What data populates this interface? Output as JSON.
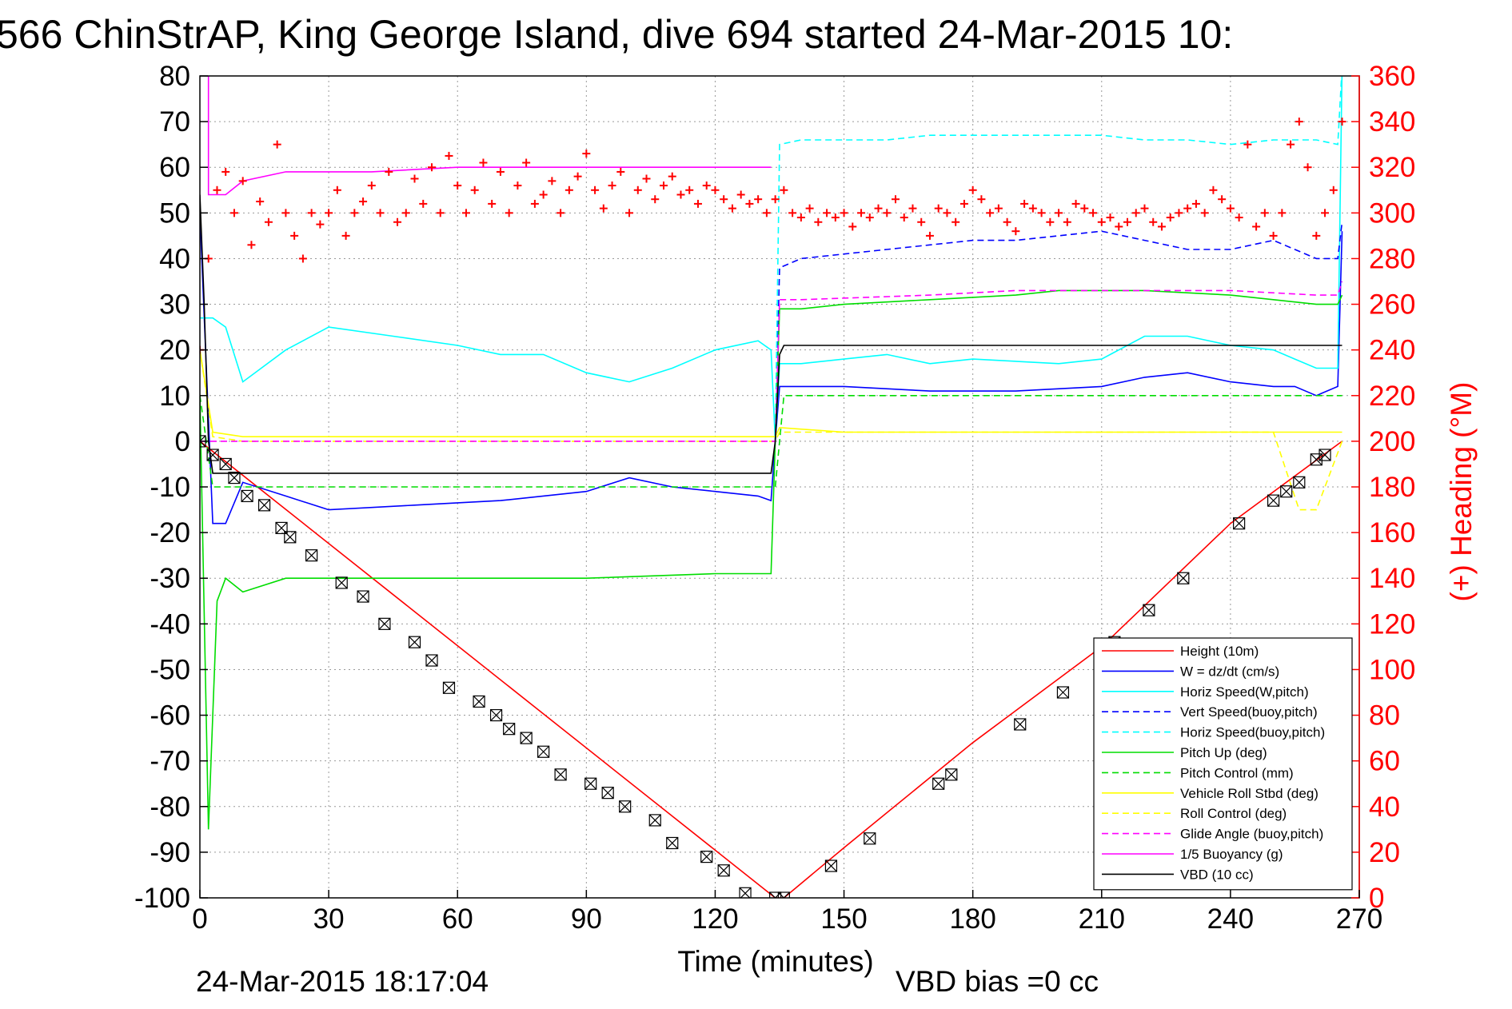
{
  "chart_data": {
    "type": "line",
    "title": "566 ChinStrAP, King George Island, dive 694 started 24-Mar-2015 10:",
    "xlabel": "Time (minutes)",
    "ylabel": "",
    "y2label": "(+) Heading (°M)",
    "xlim": [
      0,
      270
    ],
    "ylim": [
      -100,
      80
    ],
    "y2lim": [
      0,
      360
    ],
    "xticks": [
      0,
      30,
      60,
      90,
      120,
      150,
      180,
      210,
      240,
      270
    ],
    "yticks": [
      -100,
      -90,
      -80,
      -70,
      -60,
      -50,
      -40,
      -30,
      -20,
      -10,
      0,
      10,
      20,
      30,
      40,
      50,
      60,
      70,
      80
    ],
    "y2ticks": [
      0,
      20,
      40,
      60,
      80,
      100,
      120,
      140,
      160,
      180,
      200,
      220,
      240,
      260,
      280,
      300,
      320,
      340,
      360
    ],
    "grid": true,
    "legend_position": "bottom-right",
    "footer_left": "24-Mar-2015 18:17:04",
    "footer_right": "VBD bias =0 cc",
    "series": [
      {
        "name": "Height (10m)",
        "color": "#ff0000",
        "style": "solid",
        "x": [
          0,
          134,
          136,
          150,
          180,
          210,
          240,
          266
        ],
        "y": [
          0,
          -100,
          -100,
          -89,
          -66,
          -45,
          -18,
          0
        ]
      },
      {
        "name": "W = dz/dt (cm/s)",
        "color": "#0000ff",
        "style": "solid",
        "x": [
          0,
          3,
          6,
          10,
          20,
          30,
          50,
          70,
          90,
          100,
          110,
          120,
          130,
          133,
          134,
          135,
          140,
          150,
          170,
          190,
          210,
          220,
          230,
          240,
          250,
          255,
          260,
          265,
          266
        ],
        "y": [
          50,
          -18,
          -18,
          -9,
          -12,
          -15,
          -14,
          -13,
          -11,
          -8,
          -10,
          -11,
          -12,
          -13,
          0,
          12,
          12,
          12,
          11,
          11,
          12,
          14,
          15,
          13,
          12,
          12,
          10,
          12,
          46
        ]
      },
      {
        "name": "Horiz Speed(W,pitch)",
        "color": "#00ffff",
        "style": "solid",
        "x": [
          0,
          3,
          6,
          10,
          20,
          30,
          45,
          60,
          70,
          80,
          90,
          100,
          110,
          120,
          130,
          133,
          134,
          135,
          140,
          150,
          160,
          170,
          180,
          200,
          210,
          220,
          230,
          240,
          250,
          255,
          260,
          265,
          266
        ],
        "y": [
          27,
          27,
          25,
          13,
          20,
          25,
          23,
          21,
          19,
          19,
          15,
          13,
          16,
          20,
          22,
          20,
          0,
          17,
          17,
          18,
          19,
          17,
          18,
          17,
          18,
          23,
          23,
          21,
          20,
          18,
          16,
          16,
          82
        ]
      },
      {
        "name": "Vert Speed(buoy,pitch)",
        "color": "#0000ff",
        "style": "dashed",
        "x": [
          134,
          135,
          140,
          150,
          160,
          170,
          180,
          190,
          200,
          210,
          220,
          230,
          240,
          250,
          255,
          260,
          265,
          266
        ],
        "y": [
          0,
          38,
          40,
          41,
          42,
          43,
          44,
          44,
          45,
          46,
          44,
          42,
          42,
          44,
          42,
          40,
          40,
          48
        ]
      },
      {
        "name": "Horiz Speed(buoy,pitch)",
        "color": "#00ffff",
        "style": "dashed",
        "x": [
          134,
          135,
          140,
          150,
          160,
          170,
          180,
          200,
          210,
          220,
          230,
          240,
          250,
          255,
          260,
          265,
          266
        ],
        "y": [
          0,
          65,
          66,
          66,
          66,
          67,
          67,
          67,
          67,
          66,
          66,
          65,
          66,
          66,
          66,
          65,
          82
        ]
      },
      {
        "name": "Pitch Up (deg)",
        "color": "#00dd00",
        "style": "solid",
        "x": [
          0,
          2,
          3,
          4,
          6,
          10,
          20,
          30,
          60,
          90,
          120,
          133,
          134,
          135,
          140,
          150,
          170,
          190,
          200,
          220,
          240,
          250,
          260,
          265,
          266
        ],
        "y": [
          10,
          -85,
          -60,
          -35,
          -30,
          -33,
          -30,
          -30,
          -30,
          -30,
          -29,
          -29,
          0,
          29,
          29,
          30,
          31,
          32,
          33,
          33,
          32,
          31,
          30,
          30,
          32
        ]
      },
      {
        "name": "Pitch Control (mm)",
        "color": "#00dd00",
        "style": "dashed",
        "x": [
          0,
          3,
          6,
          134,
          135,
          136,
          266
        ],
        "y": [
          10,
          -10,
          -10,
          -10,
          0,
          10,
          10
        ]
      },
      {
        "name": "Vehicle Roll Stbd (deg)",
        "color": "#ffff00",
        "style": "solid",
        "x": [
          0,
          3,
          10,
          60,
          120,
          134,
          135,
          150,
          200,
          240,
          266
        ],
        "y": [
          20,
          2,
          1,
          1,
          1,
          1,
          3,
          2,
          2,
          2,
          2
        ]
      },
      {
        "name": "Roll Control (deg)",
        "color": "#ffff00",
        "style": "dashed",
        "x": [
          0,
          3,
          10,
          60,
          120,
          134,
          135,
          200,
          250,
          256,
          260,
          266
        ],
        "y": [
          20,
          1,
          0,
          0,
          0,
          0,
          2,
          2,
          2,
          -15,
          -15,
          0
        ]
      },
      {
        "name": "Glide Angle (buoy,pitch)",
        "color": "#ff00ff",
        "style": "dashed",
        "x": [
          0,
          134,
          135,
          140,
          170,
          190,
          210,
          240,
          260,
          265,
          266
        ],
        "y": [
          0,
          0,
          31,
          31,
          32,
          33,
          33,
          33,
          32,
          32,
          35
        ]
      },
      {
        "name": "1/5 Buoyancy (g)",
        "color": "#ff00ff",
        "style": "solid",
        "x": [
          2,
          2,
          6,
          10,
          20,
          40,
          60,
          90,
          120,
          133
        ],
        "y": [
          80,
          54,
          54,
          57,
          59,
          59,
          60,
          60,
          60,
          60
        ]
      },
      {
        "name": "VBD (10 cc)",
        "color": "#000000",
        "style": "solid",
        "x": [
          0,
          1,
          2,
          3,
          4,
          133,
          134,
          135,
          136,
          266
        ],
        "y": [
          54,
          30,
          0,
          -7,
          -7,
          -7,
          0,
          19,
          21,
          21
        ]
      }
    ],
    "markers": {
      "heading_series": {
        "name": "(+) Heading",
        "color": "#ff0000",
        "marker": "+",
        "axis": "right",
        "x": [
          0,
          2,
          4,
          6,
          8,
          10,
          12,
          14,
          16,
          18,
          20,
          22,
          24,
          26,
          28,
          30,
          32,
          34,
          36,
          38,
          40,
          42,
          44,
          46,
          48,
          50,
          52,
          54,
          56,
          58,
          60,
          62,
          64,
          66,
          68,
          70,
          72,
          74,
          76,
          78,
          80,
          82,
          84,
          86,
          88,
          90,
          92,
          94,
          96,
          98,
          100,
          102,
          104,
          106,
          108,
          110,
          112,
          114,
          116,
          118,
          120,
          122,
          124,
          126,
          128,
          130,
          132,
          134,
          136,
          138,
          140,
          142,
          144,
          146,
          148,
          150,
          152,
          154,
          156,
          158,
          160,
          162,
          164,
          166,
          168,
          170,
          172,
          174,
          176,
          178,
          180,
          182,
          184,
          186,
          188,
          190,
          192,
          194,
          196,
          198,
          200,
          202,
          204,
          206,
          208,
          210,
          212,
          214,
          216,
          218,
          220,
          222,
          224,
          226,
          228,
          230,
          232,
          234,
          236,
          238,
          240,
          242,
          244,
          246,
          248,
          250,
          252,
          254,
          256,
          258,
          260,
          262,
          264,
          266
        ],
        "y": [
          240,
          280,
          310,
          318,
          300,
          314,
          286,
          305,
          296,
          330,
          300,
          290,
          280,
          300,
          295,
          300,
          310,
          290,
          300,
          305,
          312,
          300,
          318,
          296,
          300,
          315,
          304,
          320,
          300,
          325,
          312,
          300,
          310,
          322,
          304,
          318,
          300,
          312,
          322,
          304,
          308,
          314,
          300,
          310,
          316,
          326,
          310,
          302,
          312,
          318,
          300,
          310,
          315,
          306,
          312,
          316,
          308,
          310,
          304,
          312,
          310,
          306,
          302,
          308,
          304,
          306,
          300,
          306,
          310,
          300,
          298,
          302,
          296,
          300,
          298,
          300,
          294,
          300,
          298,
          302,
          300,
          306,
          298,
          302,
          296,
          290,
          302,
          300,
          296,
          304,
          310,
          306,
          300,
          302,
          296,
          292,
          304,
          302,
          300,
          296,
          300,
          296,
          304,
          302,
          300,
          296,
          298,
          294,
          296,
          300,
          302,
          296,
          294,
          298,
          300,
          302,
          304,
          300,
          310,
          306,
          302,
          298,
          330,
          294,
          300,
          290,
          300,
          330,
          340,
          320,
          290,
          300,
          310,
          340
        ]
      },
      "depth_markers": {
        "marker": "boxed-x",
        "color": "#000000",
        "x": [
          0,
          3,
          6,
          8,
          11,
          15,
          19,
          21,
          26,
          33,
          38,
          43,
          50,
          54,
          58,
          65,
          69,
          72,
          76,
          80,
          84,
          91,
          95,
          99,
          106,
          110,
          118,
          122,
          127,
          134,
          136,
          147,
          156,
          172,
          175,
          191,
          201,
          213,
          221,
          229,
          242,
          250,
          253,
          256,
          260,
          262
        ],
        "y": [
          0,
          -3,
          -5,
          -8,
          -12,
          -14,
          -19,
          -21,
          -25,
          -31,
          -34,
          -40,
          -44,
          -48,
          -54,
          -57,
          -60,
          -63,
          -65,
          -68,
          -73,
          -75,
          -77,
          -80,
          -83,
          -88,
          -91,
          -94,
          -99,
          -100,
          -100,
          -93,
          -87,
          -75,
          -73,
          -62,
          -55,
          -44,
          -37,
          -30,
          -18,
          -13,
          -11,
          -9,
          -4,
          -3
        ]
      }
    }
  }
}
